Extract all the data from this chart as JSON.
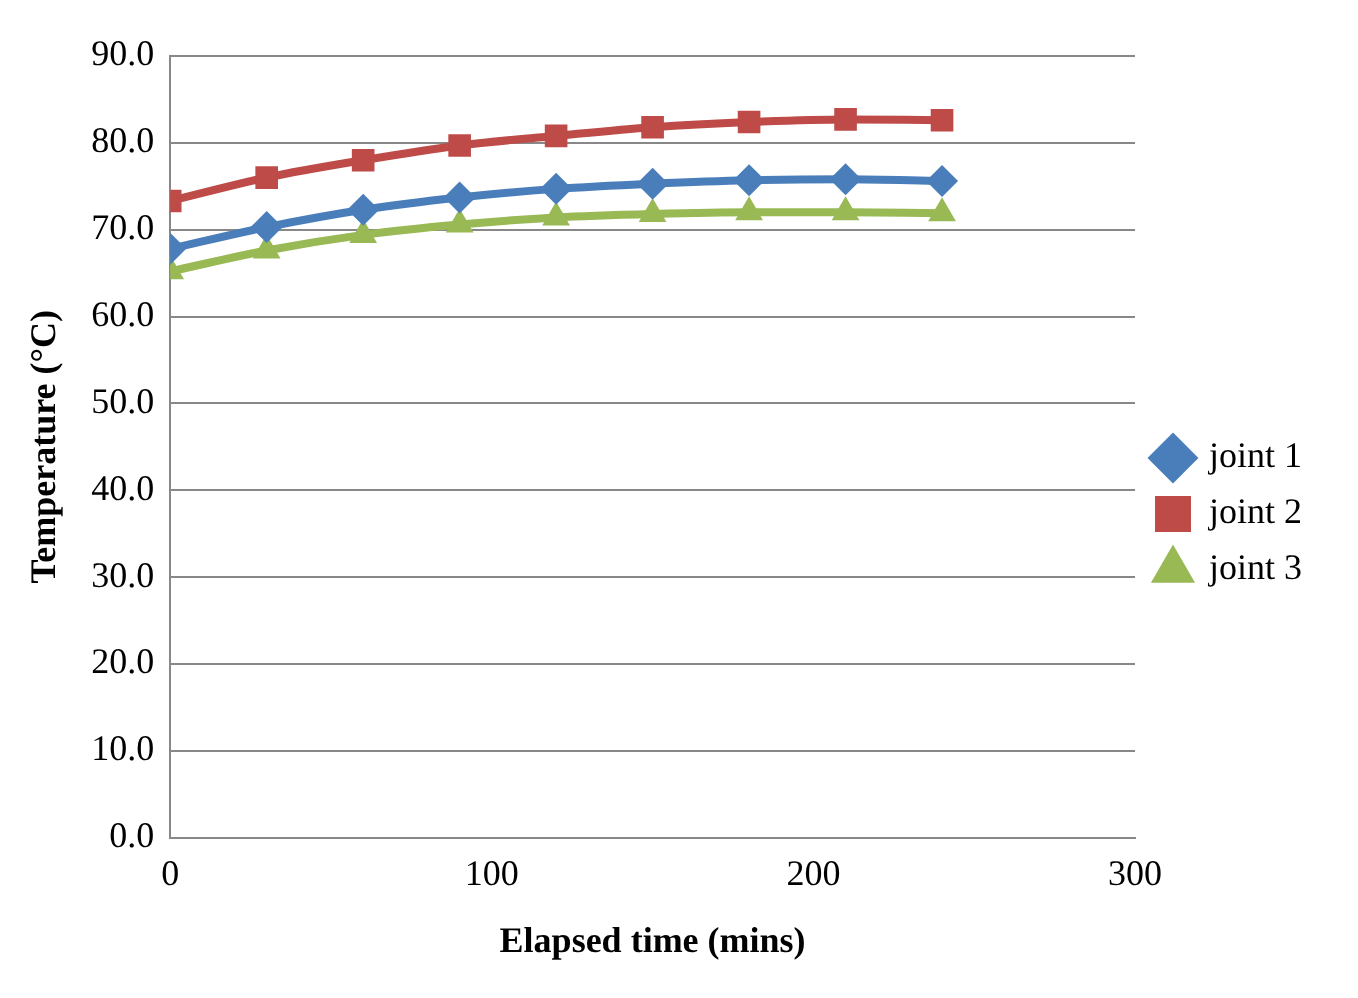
{
  "chart_data": {
    "type": "line",
    "xlabel": "Elapsed time (mins)",
    "ylabel": "Temperature (°C)",
    "x": [
      0,
      30,
      60,
      90,
      120,
      150,
      180,
      210,
      240
    ],
    "series": [
      {
        "name": "joint 1",
        "color": "#4a7ebb",
        "marker": "diamond",
        "values": [
          67.8,
          70.3,
          72.3,
          73.7,
          74.7,
          75.3,
          75.7,
          75.8,
          75.6
        ]
      },
      {
        "name": "joint 2",
        "color": "#be4b48",
        "marker": "square",
        "values": [
          73.3,
          76.0,
          78.0,
          79.7,
          80.8,
          81.8,
          82.4,
          82.7,
          82.6
        ]
      },
      {
        "name": "joint 3",
        "color": "#98b954",
        "marker": "triangle",
        "values": [
          65.2,
          67.6,
          69.4,
          70.6,
          71.4,
          71.8,
          72.0,
          72.0,
          71.9
        ]
      }
    ],
    "xlim": [
      0,
      300
    ],
    "xticks": [
      0,
      100,
      200,
      300
    ],
    "ylim": [
      0,
      90
    ],
    "yticks": [
      {
        "value": 0,
        "label": "0.0"
      },
      {
        "value": 10,
        "label": "10.0"
      },
      {
        "value": 20,
        "label": "20.0"
      },
      {
        "value": 30,
        "label": "30.0"
      },
      {
        "value": 40,
        "label": "40.0"
      },
      {
        "value": 50,
        "label": "50.0"
      },
      {
        "value": 60,
        "label": "60.0"
      },
      {
        "value": 70,
        "label": "70.0"
      },
      {
        "value": 80,
        "label": "80.0"
      },
      {
        "value": 90,
        "label": "90.0"
      }
    ],
    "grid": "y",
    "legend": "right"
  }
}
